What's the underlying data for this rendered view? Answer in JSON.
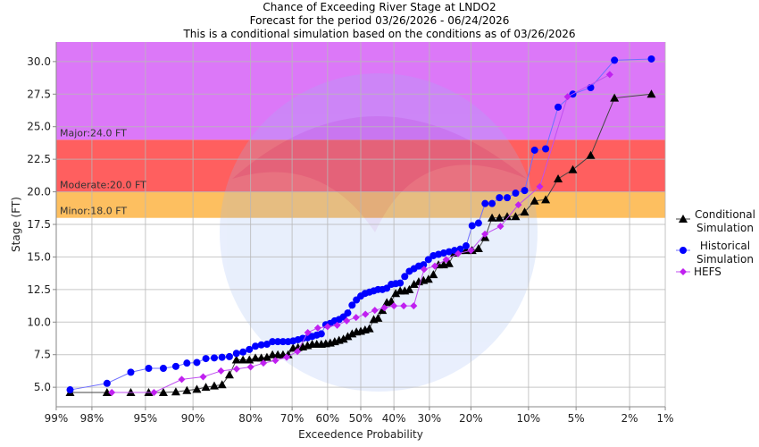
{
  "chart_data": {
    "type": "scatter",
    "title": "Chance of Exceeding River Stage at LNDO2",
    "subtitle": "Forecast for the period 03/26/2026 - 06/24/2026",
    "subtitle2": "This is a conditional simulation based on the conditions as of 03/26/2026",
    "xlabel": "Exceedence Probability",
    "ylabel": "Stage (FT)",
    "x_scale": "normal-probability",
    "x_ticks": [
      99,
      98,
      95,
      90,
      80,
      70,
      60,
      50,
      40,
      30,
      20,
      10,
      5,
      2,
      1
    ],
    "x_tick_labels": [
      "99%",
      "98%",
      "95%",
      "90%",
      "80%",
      "70%",
      "60%",
      "50%",
      "40%",
      "30%",
      "20%",
      "10%",
      "5%",
      "2%",
      "1%"
    ],
    "ylim": [
      3.5,
      31.5
    ],
    "y_ticks": [
      5,
      7.5,
      10,
      12.5,
      15,
      17.5,
      20,
      22.5,
      25,
      27.5,
      30
    ],
    "y_tick_labels": [
      "5.0",
      "7.5",
      "10.0",
      "12.5",
      "15.0",
      "17.5",
      "20.0",
      "22.5",
      "25.0",
      "27.5",
      "30.0"
    ],
    "grid": true,
    "legend_position": "right",
    "flood_bands": [
      {
        "label": "Minor:18.0 FT",
        "from": 18,
        "to": 20,
        "color": "#fdbf60"
      },
      {
        "label": "Moderate:20.0 FT",
        "from": 20,
        "to": 24,
        "color": "#ff5f5f"
      },
      {
        "label": "Major:24.0 FT",
        "from": 24,
        "to": 31.5,
        "color": "#dc78f8"
      }
    ],
    "series": [
      {
        "name": "Conditional Simulation",
        "legend_lines": [
          "Conditional",
          "Simulation"
        ],
        "marker": "triangle",
        "color": "#000000",
        "line_color": "#444444",
        "x": [
          98.68,
          97.37,
          96.05,
          94.74,
          93.42,
          92.11,
          90.79,
          89.47,
          88.16,
          86.84,
          85.53,
          84.21,
          82.89,
          81.58,
          80.26,
          78.95,
          77.63,
          76.32,
          75.0,
          73.68,
          72.37,
          71.05,
          69.74,
          68.42,
          67.11,
          65.79,
          64.47,
          63.16,
          61.84,
          60.53,
          59.21,
          57.89,
          56.58,
          55.26,
          53.95,
          52.63,
          51.32,
          50.0,
          48.68,
          47.37,
          46.05,
          44.74,
          43.42,
          42.11,
          40.79,
          39.47,
          38.16,
          36.84,
          35.53,
          34.21,
          32.89,
          31.58,
          30.26,
          28.95,
          27.63,
          26.32,
          25.0,
          23.68,
          22.37,
          21.05,
          19.74,
          18.42,
          17.11,
          15.79,
          14.47,
          13.16,
          11.84,
          10.53,
          9.21,
          7.89,
          6.58,
          5.26,
          3.95,
          2.63,
          1.32
        ],
        "y": [
          4.6,
          4.6,
          4.6,
          4.6,
          4.6,
          4.65,
          4.75,
          4.85,
          5.0,
          5.1,
          5.2,
          5.95,
          7.1,
          7.1,
          7.1,
          7.25,
          7.25,
          7.3,
          7.5,
          7.5,
          7.5,
          7.5,
          8.0,
          8.05,
          8.1,
          8.2,
          8.3,
          8.3,
          8.3,
          8.35,
          8.4,
          8.5,
          8.6,
          8.7,
          8.9,
          9.1,
          9.25,
          9.3,
          9.4,
          9.5,
          10.2,
          10.3,
          10.9,
          11.5,
          11.6,
          12.2,
          12.4,
          12.4,
          12.5,
          12.9,
          13.1,
          13.2,
          13.3,
          13.65,
          14.4,
          14.4,
          14.5,
          15.3,
          15.5,
          15.5,
          15.5,
          15.65,
          16.5,
          18.0,
          18.0,
          18.1,
          18.1,
          18.45,
          19.3,
          19.4,
          21.0,
          21.7,
          22.8,
          27.2,
          27.5
        ]
      },
      {
        "name": "Historical Simulation",
        "legend_lines": [
          "Historical",
          "Simulation"
        ],
        "marker": "circle",
        "color": "#0000ff",
        "line_color": "#6f6fff",
        "x": [
          98.68,
          97.37,
          96.05,
          94.74,
          93.42,
          92.11,
          90.79,
          89.47,
          88.16,
          86.84,
          85.53,
          84.21,
          82.89,
          81.58,
          80.26,
          78.95,
          77.63,
          76.32,
          75.0,
          73.68,
          72.37,
          71.05,
          69.74,
          68.42,
          67.11,
          65.79,
          64.47,
          63.16,
          61.84,
          60.53,
          59.21,
          57.89,
          56.58,
          55.26,
          53.95,
          52.63,
          51.32,
          50.0,
          48.68,
          47.37,
          46.05,
          44.74,
          43.42,
          42.11,
          40.79,
          39.47,
          38.16,
          36.84,
          35.53,
          34.21,
          32.89,
          31.58,
          30.26,
          28.95,
          27.63,
          26.32,
          25.0,
          23.68,
          22.37,
          21.05,
          19.74,
          18.42,
          17.11,
          15.79,
          14.47,
          13.16,
          11.84,
          10.53,
          9.21,
          7.89,
          6.58,
          5.26,
          3.95,
          2.63,
          1.32
        ],
        "y": [
          4.8,
          5.3,
          6.15,
          6.45,
          6.45,
          6.6,
          6.85,
          6.9,
          7.2,
          7.25,
          7.3,
          7.35,
          7.6,
          7.7,
          7.9,
          8.15,
          8.25,
          8.3,
          8.5,
          8.5,
          8.5,
          8.5,
          8.55,
          8.65,
          8.75,
          8.8,
          8.9,
          9.0,
          9.1,
          9.8,
          9.9,
          10.1,
          10.2,
          10.4,
          10.7,
          11.3,
          11.7,
          12.0,
          12.2,
          12.3,
          12.4,
          12.5,
          12.5,
          12.6,
          12.9,
          12.95,
          13.0,
          13.5,
          13.9,
          14.1,
          14.3,
          14.4,
          14.8,
          15.1,
          15.2,
          15.3,
          15.4,
          15.5,
          15.6,
          15.85,
          17.4,
          17.6,
          19.1,
          19.1,
          19.55,
          19.55,
          19.9,
          20.1,
          23.2,
          23.3,
          26.5,
          27.5,
          28.0,
          30.1,
          30.2
        ]
      },
      {
        "name": "HEFS",
        "legend_lines": [
          "HEFS"
        ],
        "marker": "diamond",
        "color": "#c020f0",
        "line_color": "#c050f0",
        "x": [
          97.14,
          94.29,
          91.43,
          88.57,
          85.71,
          82.86,
          80.0,
          77.14,
          74.29,
          71.43,
          68.57,
          65.71,
          62.86,
          60.0,
          57.14,
          54.29,
          51.43,
          48.57,
          45.71,
          42.86,
          40.0,
          37.14,
          34.29,
          31.43,
          28.57,
          25.71,
          22.86,
          20.0,
          17.14,
          14.29,
          11.43,
          8.57,
          5.71,
          2.86
        ],
        "y": [
          4.6,
          4.6,
          5.6,
          5.8,
          6.25,
          6.4,
          6.55,
          6.85,
          7.05,
          7.3,
          7.75,
          9.2,
          9.55,
          9.65,
          9.75,
          10.1,
          10.35,
          10.6,
          10.9,
          11.1,
          11.25,
          11.25,
          11.25,
          14.05,
          14.3,
          14.8,
          15.25,
          15.5,
          16.75,
          17.35,
          19.0,
          20.4,
          27.3,
          29.0
        ]
      }
    ]
  }
}
